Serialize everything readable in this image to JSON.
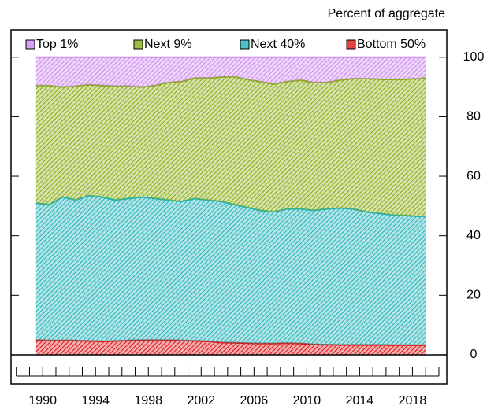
{
  "chart_data": {
    "type": "stacked_area",
    "y_axis_label": "Percent of aggregate",
    "x": [
      1989.5,
      1990.5,
      1991.5,
      1992.5,
      1993.5,
      1994.5,
      1995.5,
      1996.5,
      1997.5,
      1998.5,
      1999.5,
      2000.5,
      2001.5,
      2002.5,
      2003.5,
      2004.5,
      2005.5,
      2006.5,
      2007.5,
      2008.5,
      2009.5,
      2010.5,
      2011.5,
      2012.5,
      2013.5,
      2014.5,
      2015.5,
      2016.5,
      2017.5,
      2018.5,
      2019
    ],
    "series": [
      {
        "name": "Top 1%",
        "color": "#cc88ee",
        "values": [
          9.5,
          9.5,
          10.0,
          9.7,
          9.2,
          9.5,
          9.7,
          9.7,
          10.0,
          9.5,
          8.5,
          8.2,
          7.0,
          7.0,
          6.7,
          6.5,
          7.5,
          8.2,
          9.0,
          8.2,
          7.7,
          8.5,
          8.5,
          7.7,
          7.2,
          7.2,
          7.4,
          7.5,
          7.4,
          7.2,
          7.0
        ]
      },
      {
        "name": "Next 9%",
        "color": "#88aa11",
        "values": [
          39.5,
          40.0,
          37.0,
          38.3,
          37.3,
          37.5,
          38.3,
          37.8,
          37.0,
          38.0,
          39.5,
          40.3,
          40.5,
          41.0,
          41.8,
          43.0,
          43.0,
          43.3,
          43.0,
          42.8,
          43.3,
          43.0,
          42.5,
          43.0,
          43.8,
          44.8,
          45.1,
          45.5,
          45.8,
          46.3,
          46.4
        ]
      },
      {
        "name": "Next 40%",
        "color": "#22b2b8",
        "values": [
          46.1,
          45.7,
          48.2,
          47.2,
          48.9,
          48.5,
          47.4,
          47.7,
          48.1,
          47.6,
          47.1,
          46.7,
          47.8,
          47.5,
          47.4,
          46.5,
          45.6,
          44.7,
          44.2,
          45.1,
          45.2,
          45.0,
          45.6,
          46.0,
          45.7,
          44.7,
          44.2,
          43.8,
          43.6,
          43.3,
          43.4
        ]
      },
      {
        "name": "Bottom 50%",
        "color": "#dd1111",
        "values": [
          4.9,
          4.8,
          4.8,
          4.8,
          4.6,
          4.5,
          4.6,
          4.8,
          4.9,
          4.9,
          4.9,
          4.8,
          4.7,
          4.5,
          4.1,
          4.0,
          3.9,
          3.8,
          3.8,
          3.9,
          3.8,
          3.5,
          3.4,
          3.3,
          3.3,
          3.3,
          3.3,
          3.2,
          3.2,
          3.2,
          3.2
        ]
      }
    ],
    "xlim": [
      1987.6,
      2020.6
    ],
    "xticks": [
      1990,
      1994,
      1998,
      2002,
      2006,
      2010,
      2014,
      2018
    ],
    "xminorticks": [
      1988,
      1989,
      1990,
      1991,
      1992,
      1993,
      1994,
      1995,
      1996,
      1997,
      1998,
      1999,
      2000,
      2001,
      2002,
      2003,
      2004,
      2005,
      2006,
      2007,
      2008,
      2009,
      2010,
      2011,
      2012,
      2013,
      2014,
      2015,
      2016,
      2017,
      2018,
      2019,
      2020
    ],
    "ylim": [
      -9.8,
      109.2
    ],
    "yticks": [
      0,
      20,
      40,
      60,
      80,
      100
    ],
    "zero_line": true,
    "legend": "top"
  }
}
